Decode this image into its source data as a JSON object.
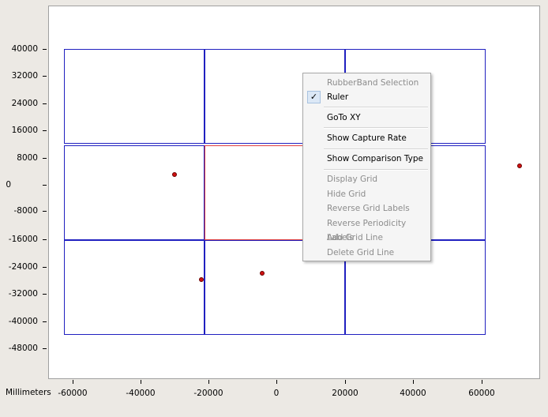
{
  "plot": {
    "units_label": "Millimeters",
    "y_ticks": [
      "40000",
      "32000",
      "24000",
      "16000",
      "8000",
      "0",
      "-8000",
      "-16000",
      "-24000",
      "-32000",
      "-40000",
      "-48000"
    ],
    "x_ticks": [
      "-60000",
      "-40000",
      "-20000",
      "0",
      "20000",
      "40000",
      "60000"
    ],
    "grid": {
      "rows": 3,
      "cols": 3,
      "selected_cell": [
        1,
        1
      ],
      "cell_color": "#2020c0",
      "selected_color": "#e04040"
    },
    "points_color": "#d01010"
  },
  "context_menu": {
    "items": [
      {
        "label": "RubberBand Selection",
        "enabled": false,
        "checked": false
      },
      {
        "label": "Ruler",
        "enabled": true,
        "checked": true,
        "check_mark": "✓"
      },
      {
        "label": "GoTo XY",
        "enabled": true,
        "checked": false
      },
      {
        "label": "Show Capture Rate",
        "enabled": true,
        "checked": false
      },
      {
        "label": "Show Comparison Type",
        "enabled": true,
        "checked": false
      },
      {
        "label": "Display Grid",
        "enabled": false,
        "checked": false
      },
      {
        "label": "Hide Grid",
        "enabled": false,
        "checked": false
      },
      {
        "label": "Reverse Grid Labels",
        "enabled": false,
        "checked": false
      },
      {
        "label": "Reverse Periodicity Labels",
        "enabled": false,
        "checked": false
      },
      {
        "label": "Add Grid Line",
        "enabled": false,
        "checked": false
      },
      {
        "label": "Delete Grid Line",
        "enabled": false,
        "checked": false
      }
    ]
  }
}
